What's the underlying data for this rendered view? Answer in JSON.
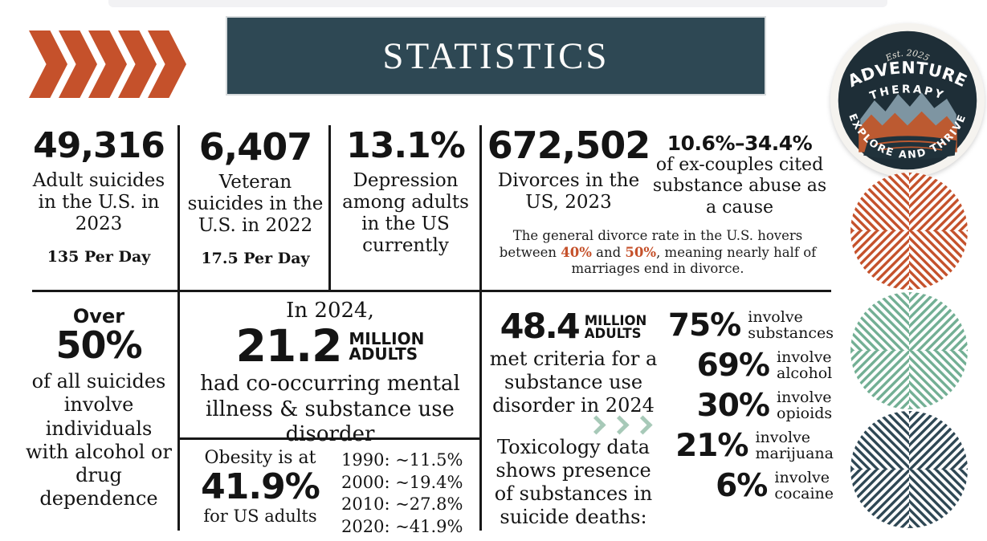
{
  "colors": {
    "accent_orange": "#C5512B",
    "banner_teal": "#2E4854",
    "navy": "#1E2E37",
    "teal_circle": "#72AF94",
    "light_teal": "#A7C9B8",
    "ink": "#141414"
  },
  "header": {
    "title": "STATISTICS"
  },
  "logo": {
    "est": "Est. 2025",
    "line1": "ADVENTURE",
    "line2": "THERAPY",
    "tagline": "EXPLORE AND THRIVE"
  },
  "top_stats": [
    {
      "value": "49,316",
      "label": "Adult suicides in the U.S. in 2023",
      "sub": "135 Per Day"
    },
    {
      "value": "6,407",
      "label": "Veteran suicides in the U.S. in 2022",
      "sub": "17.5 Per Day"
    },
    {
      "value": "13.1%",
      "label": "Depression among adults in the US currently"
    }
  ],
  "divorce": {
    "value": "672,502",
    "label": "Divorces in the US, 2023",
    "range": "10.6%–34.4%",
    "range_label": "of ex-couples cited substance abuse as a cause",
    "note_parts": [
      "The general divorce rate in the U.S. hovers between ",
      "40%",
      " and ",
      "50%",
      ", meaning nearly half of marriages end in divorce."
    ]
  },
  "suicide_alcohol": {
    "prefix": "Over",
    "value": "50%",
    "label": "of all suicides involve individuals with alcohol or drug dependence"
  },
  "cooccurring": {
    "intro": "In 2024,",
    "value": "21.2",
    "unit_line1": "MILLION",
    "unit_line2": "ADULTS",
    "label": "had co-occurring mental illness & substance use disorder"
  },
  "obesity": {
    "intro": "Obesity is at",
    "value": "41.9%",
    "label": "for US adults",
    "timeline": [
      "1990: ~11.5%",
      "2000: ~19.4%",
      "2010: ~27.8%",
      "2020: ~41.9%"
    ]
  },
  "sud": {
    "value": "48.4",
    "unit_line1": "MILLION",
    "unit_line2": "ADULTS",
    "label": "met criteria for a substance use disorder in 2024",
    "toxicology": "Toxicology data shows presence of substances in suicide deaths:"
  },
  "toxicology_stats": [
    {
      "value": "75%",
      "label1": "involve",
      "label2": "substances"
    },
    {
      "value": "69%",
      "label1": "involve",
      "label2": "alcohol"
    },
    {
      "value": "30%",
      "label1": "involve",
      "label2": "opioids"
    },
    {
      "value": "21%",
      "label1": "involve",
      "label2": "marijuana"
    },
    {
      "value": "6%",
      "label1": "involve",
      "label2": "cocaine"
    }
  ],
  "decor": {
    "circles": [
      {
        "name": "orange-pattern-circle",
        "color": "#C5512B"
      },
      {
        "name": "teal-pattern-circle",
        "color": "#72AF94"
      },
      {
        "name": "navy-pattern-circle",
        "color": "#2E4754"
      }
    ]
  }
}
